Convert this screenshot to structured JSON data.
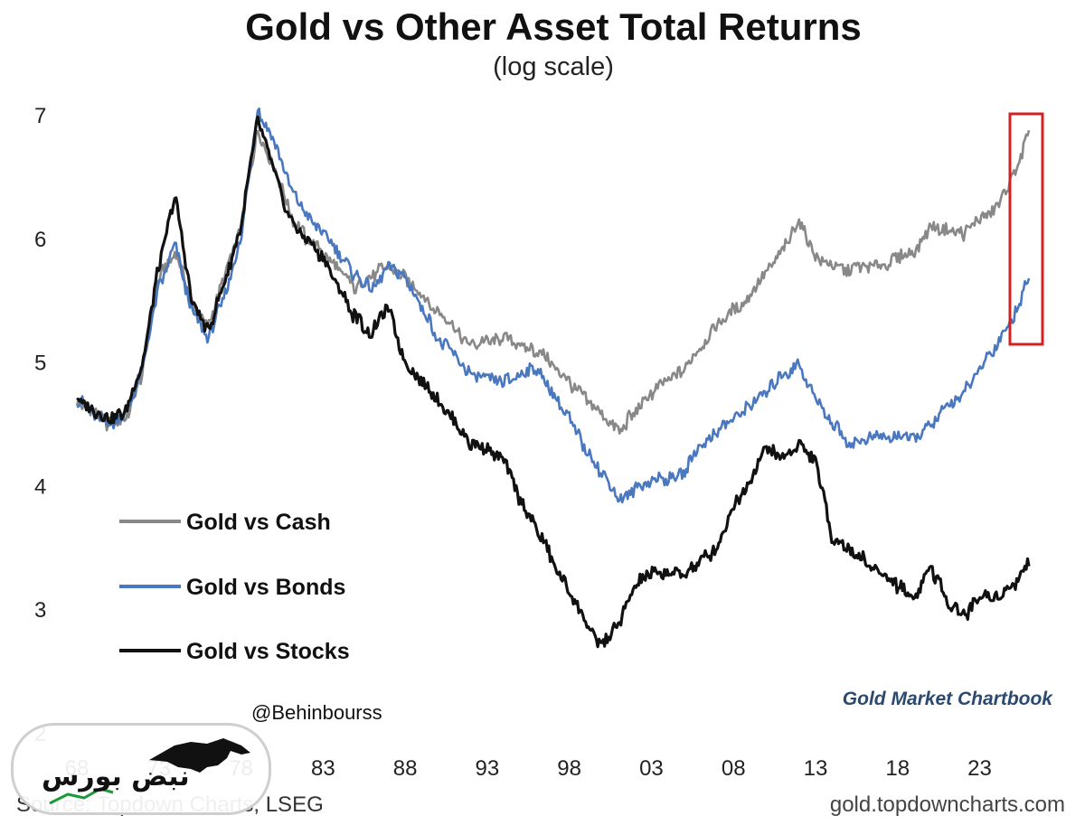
{
  "chart_data": {
    "type": "line",
    "title": "Gold vs Other Asset Total Returns",
    "subtitle": "(log scale)",
    "xlabel": "",
    "ylabel": "",
    "xlim": [
      1968,
      2026.5
    ],
    "ylim": [
      2,
      7.3
    ],
    "y_ticks": [
      "7",
      "6",
      "5",
      "4",
      "3",
      "2"
    ],
    "x_ticks": [
      "68",
      "73",
      "78",
      "83",
      "88",
      "93",
      "98",
      "03",
      "08",
      "13",
      "18",
      "23"
    ],
    "legend_position": "lower-left",
    "series": [
      {
        "name": "Gold vs Cash",
        "color": "#888888",
        "x": [
          1968,
          1970,
          1971,
          1972,
          1973,
          1974,
          1975,
          1976,
          1977,
          1978,
          1979,
          1980,
          1981,
          1982,
          1983,
          1985,
          1986,
          1987,
          1988,
          1990,
          1992,
          1994,
          1996,
          1998,
          1999,
          2001,
          2003,
          2005,
          2007,
          2009,
          2011,
          2012,
          2013,
          2015,
          2017,
          2019,
          2020,
          2022,
          2024,
          2025,
          2026
        ],
        "values": [
          4.7,
          4.5,
          4.55,
          4.9,
          5.7,
          5.9,
          5.5,
          5.3,
          5.7,
          6.1,
          6.9,
          6.6,
          6.2,
          6.0,
          5.9,
          5.6,
          5.7,
          5.8,
          5.7,
          5.4,
          5.15,
          5.2,
          5.1,
          4.85,
          4.7,
          4.45,
          4.75,
          4.95,
          5.3,
          5.55,
          5.9,
          6.15,
          5.85,
          5.75,
          5.8,
          5.9,
          6.1,
          6.05,
          6.25,
          6.5,
          6.85
        ]
      },
      {
        "name": "Gold vs Bonds",
        "color": "#4a78c0",
        "x": [
          1968,
          1970,
          1971,
          1972,
          1973,
          1974,
          1975,
          1976,
          1977,
          1978,
          1979,
          1980,
          1981,
          1982,
          1983,
          1985,
          1986,
          1987,
          1988,
          1990,
          1992,
          1994,
          1996,
          1998,
          1999,
          2001,
          2003,
          2005,
          2006,
          2008,
          2010,
          2011,
          2012,
          2013,
          2015,
          2017,
          2019,
          2020,
          2022,
          2024,
          2025,
          2026
        ],
        "values": [
          4.7,
          4.5,
          4.6,
          4.95,
          5.6,
          5.95,
          5.4,
          5.2,
          5.55,
          6.0,
          7.05,
          6.8,
          6.4,
          6.2,
          6.05,
          5.7,
          5.6,
          5.8,
          5.7,
          5.2,
          4.9,
          4.85,
          4.95,
          4.55,
          4.3,
          3.9,
          4.05,
          4.1,
          4.35,
          4.55,
          4.75,
          4.9,
          5.0,
          4.7,
          4.35,
          4.4,
          4.4,
          4.5,
          4.75,
          5.15,
          5.35,
          5.7
        ]
      },
      {
        "name": "Gold vs Stocks",
        "color": "#111111",
        "x": [
          1968,
          1970,
          1971,
          1972,
          1973,
          1974,
          1975,
          1976,
          1977,
          1978,
          1979,
          1980,
          1981,
          1982,
          1983,
          1985,
          1986,
          1987,
          1988,
          1990,
          1992,
          1993,
          1994,
          1995,
          1997,
          1999,
          2000,
          2001,
          2002,
          2003,
          2005,
          2007,
          2008,
          2009,
          2010,
          2011,
          2012,
          2013,
          2014,
          2016,
          2018,
          2019,
          2020,
          2021,
          2022,
          2023,
          2024,
          2025,
          2026
        ],
        "values": [
          4.7,
          4.55,
          4.6,
          5.0,
          5.8,
          6.35,
          5.5,
          5.25,
          5.65,
          6.1,
          6.95,
          6.55,
          6.15,
          6.0,
          5.85,
          5.35,
          5.25,
          5.45,
          5.0,
          4.7,
          4.35,
          4.3,
          4.2,
          3.9,
          3.4,
          2.9,
          2.7,
          2.9,
          3.2,
          3.3,
          3.3,
          3.5,
          3.85,
          4.05,
          4.3,
          4.25,
          4.35,
          4.2,
          3.6,
          3.4,
          3.2,
          3.1,
          3.35,
          3.1,
          2.95,
          3.1,
          3.1,
          3.2,
          3.4
        ]
      }
    ],
    "annotations": [
      "@Behinbourss",
      "Gold Market Chartbook"
    ],
    "source": "Source: Topdown Charts, LSEG",
    "site": "gold.topdowncharts.com"
  },
  "watermark_text": "نبض بورس"
}
